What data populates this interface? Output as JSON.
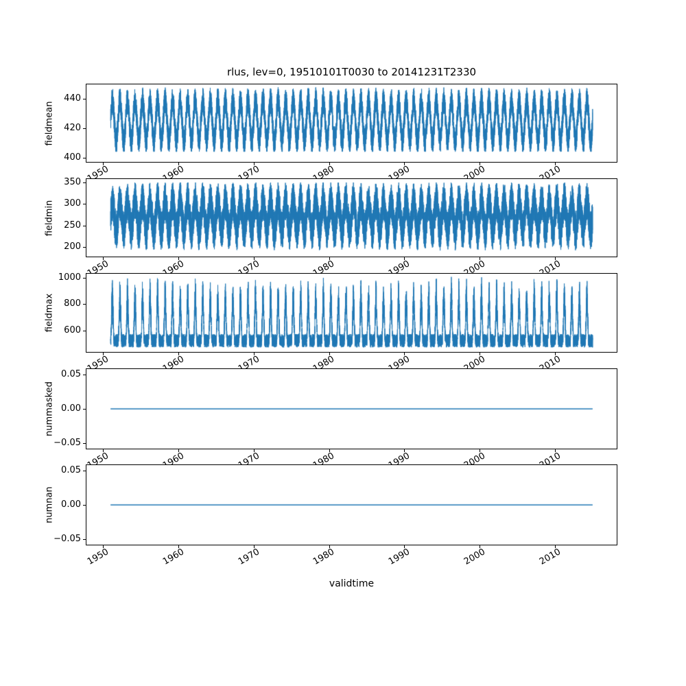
{
  "chart_data": {
    "type": "line",
    "title": "rlus, lev=0, 19510101T0030 to 20141231T2330",
    "xlabel": "validtime",
    "grid": false,
    "legend": "none",
    "line_color": "#1f77b4",
    "xlim": [
      1947.8,
      2018.2
    ],
    "x_data_range": [
      1951.0,
      2015.0
    ],
    "xticks": {
      "values": [
        1950,
        1960,
        1970,
        1980,
        1990,
        2000,
        2010
      ],
      "labels": [
        "1950",
        "1960",
        "1970",
        "1980",
        "1990",
        "2000",
        "2010"
      ]
    },
    "subplots": [
      {
        "ylabel": "fieldmean",
        "ylim": [
          397,
          450
        ],
        "yticks": {
          "values": [
            400,
            420,
            440
          ],
          "labels": [
            "400",
            "420",
            "440"
          ]
        },
        "series": {
          "kind": "seasonal_band",
          "description": "dense hourly series with annual cycle, envelope ~405 to ~448",
          "base": 425,
          "season_amp": 14,
          "noise_amp": 9,
          "clip": [
            404,
            448
          ],
          "seed": 11
        }
      },
      {
        "ylabel": "fieldmin",
        "ylim": [
          178,
          358
        ],
        "yticks": {
          "values": [
            200,
            250,
            300,
            350
          ],
          "labels": [
            "200",
            "250",
            "300",
            "350"
          ]
        },
        "series": {
          "kind": "seasonal_band",
          "description": "dense hourly series, envelope ~185 to ~350 with annual dips",
          "base": 272,
          "season_amp": 35,
          "noise_amp": 45,
          "clip": [
            183,
            350
          ],
          "seed": 22
        }
      },
      {
        "ylabel": "fieldmax",
        "ylim": [
          441,
          1029
        ],
        "yticks": {
          "values": [
            600,
            800,
            1000
          ],
          "labels": [
            "600",
            "800",
            "1000"
          ]
        },
        "series": {
          "kind": "seasonal_spike",
          "description": "dense band ~470-580 with annual upward spikes to ~1000",
          "base": 525,
          "noise_amp": 50,
          "spike_amp": 440,
          "power": 2.5,
          "clip": [
            470,
            1005
          ],
          "seed": 33
        }
      },
      {
        "ylabel": "nummasked",
        "ylim": [
          -0.0575,
          0.0575
        ],
        "yticks": {
          "values": [
            0.05,
            0.0,
            -0.05
          ],
          "labels": [
            "0.05",
            "0.00",
            "−0.05"
          ]
        },
        "series": {
          "kind": "constant",
          "description": "constant zero line",
          "value": 0
        }
      },
      {
        "ylabel": "numnan",
        "ylim": [
          -0.0575,
          0.0575
        ],
        "yticks": {
          "values": [
            0.05,
            0.0,
            -0.05
          ],
          "labels": [
            "0.05",
            "0.00",
            "−0.05"
          ]
        },
        "series": {
          "kind": "constant",
          "description": "constant zero line",
          "value": 0
        }
      }
    ]
  }
}
